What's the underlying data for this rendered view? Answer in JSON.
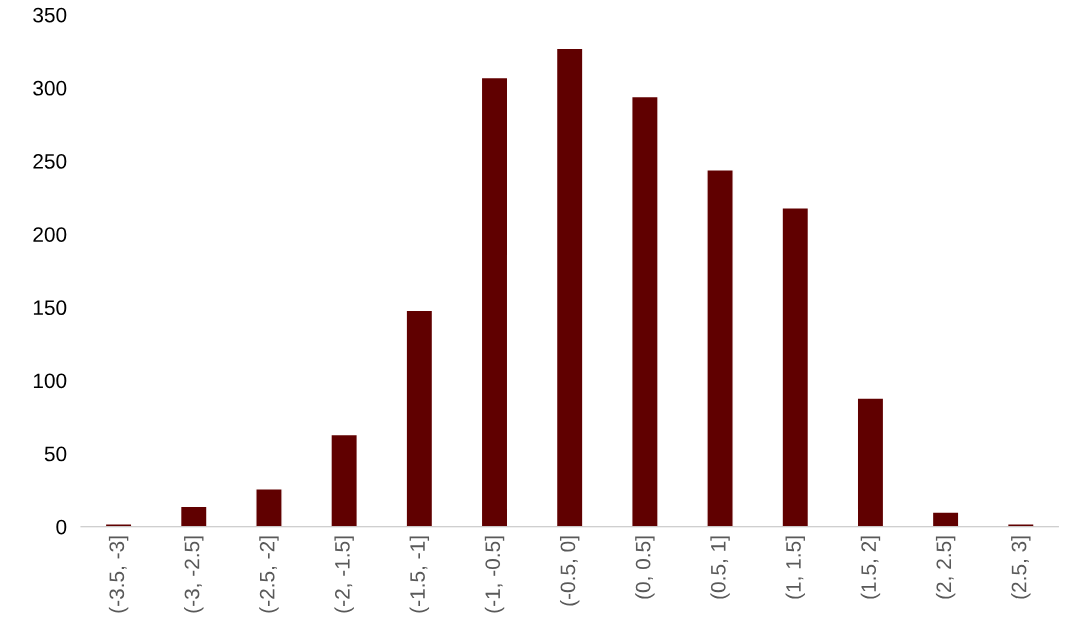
{
  "chart_data": {
    "type": "bar",
    "categories": [
      "(-3.5, -3]",
      "(-3, -2.5]",
      "(-2.5, -2]",
      "(-2, -1.5]",
      "(-1.5, -1]",
      "(-1, -0.5]",
      "(-0.5, 0]",
      "(0, 0.5]",
      "(0.5, 1]",
      "(1, 1.5]",
      "(1.5, 2]",
      "(2, 2.5]",
      "(2.5, 3]"
    ],
    "values": [
      2,
      14,
      26,
      63,
      148,
      307,
      327,
      294,
      244,
      218,
      88,
      10,
      2
    ],
    "color": "#600000",
    "ylim": [
      0,
      350
    ],
    "yticks": [
      0,
      50,
      100,
      150,
      200,
      250,
      300,
      350
    ],
    "grid": false
  }
}
